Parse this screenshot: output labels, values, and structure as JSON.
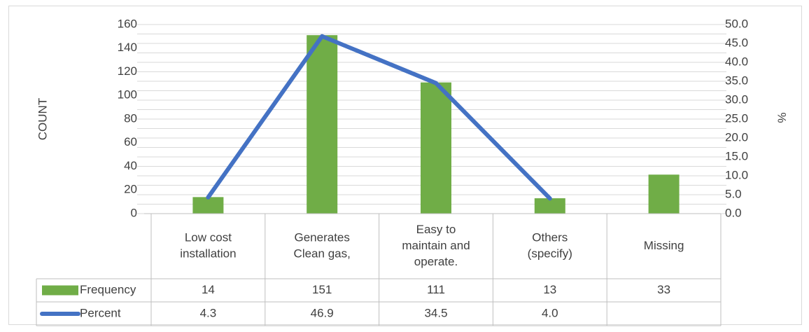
{
  "colors": {
    "bar": "#70ad47",
    "line": "#4472c4",
    "grid": "#d9d9d9",
    "table_border": "#bfbfbf",
    "text": "#404040"
  },
  "chart_data": {
    "type": "bar",
    "categories": [
      [
        "Low cost",
        "installation"
      ],
      [
        "Generates",
        "Clean  gas,"
      ],
      [
        "Easy to",
        "maintain and",
        "operate."
      ],
      [
        "Others",
        "(specify)"
      ],
      [
        "Missing"
      ]
    ],
    "series": [
      {
        "name": "Frequency",
        "type": "bar",
        "axis": "left",
        "values": [
          14,
          151,
          111,
          13,
          33
        ],
        "labels": [
          "14",
          "151",
          "111",
          "13",
          "33"
        ]
      },
      {
        "name": "Percent",
        "type": "line",
        "axis": "right",
        "values": [
          4.3,
          46.9,
          34.5,
          4.0,
          null
        ],
        "labels": [
          "4.3",
          "46.9",
          "34.5",
          "4.0",
          ""
        ]
      }
    ],
    "ylabel": "COUNT",
    "ylim": [
      0,
      160
    ],
    "yticks": [
      "0",
      "20",
      "40",
      "60",
      "80",
      "100",
      "120",
      "140",
      "160"
    ],
    "y2label": "%",
    "y2lim": [
      0,
      50
    ],
    "y2ticks": [
      "0.0",
      "5.0",
      "10.0",
      "15.0",
      "20.0",
      "25.0",
      "30.0",
      "35.0",
      "40.0",
      "45.0",
      "50.0"
    ],
    "grid": true,
    "legend": "data-table"
  }
}
